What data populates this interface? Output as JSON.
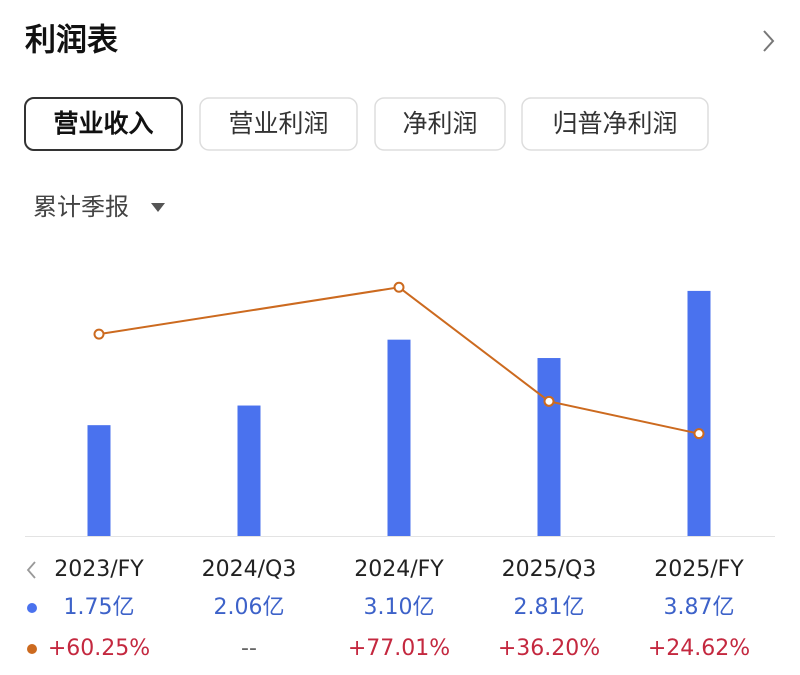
{
  "header": {
    "title": "利润表"
  },
  "tabs": [
    "营业收入",
    "营业利润",
    "净利润",
    "归普净利润"
  ],
  "period_selector": "累计季报",
  "chart_data": {
    "type": "bar",
    "categories": [
      "2023/FY",
      "2024/Q3",
      "2024/FY",
      "2025/Q3",
      "2025/FY"
    ],
    "ylim": [
      0,
      4.5
    ],
    "y2lim": [
      -12,
      90
    ],
    "series": [
      {
        "type": "bar",
        "color": "#4a72ee",
        "values": [
          1.75,
          2.06,
          3.1,
          2.81,
          3.87
        ],
        "value_labels": [
          "1.75亿",
          "2.06亿",
          "3.10亿",
          "2.81亿",
          "3.87亿"
        ],
        "label_color": "#3d62c9"
      },
      {
        "type": "line",
        "axis": "y2",
        "color": "#cc6a1f",
        "values": [
          60.25,
          null,
          77.01,
          36.2,
          24.62
        ],
        "value_labels": [
          "+60.25%",
          "--",
          "+77.01%",
          "+36.20%",
          "+24.62%"
        ],
        "label_color": "#c4283f"
      }
    ]
  }
}
